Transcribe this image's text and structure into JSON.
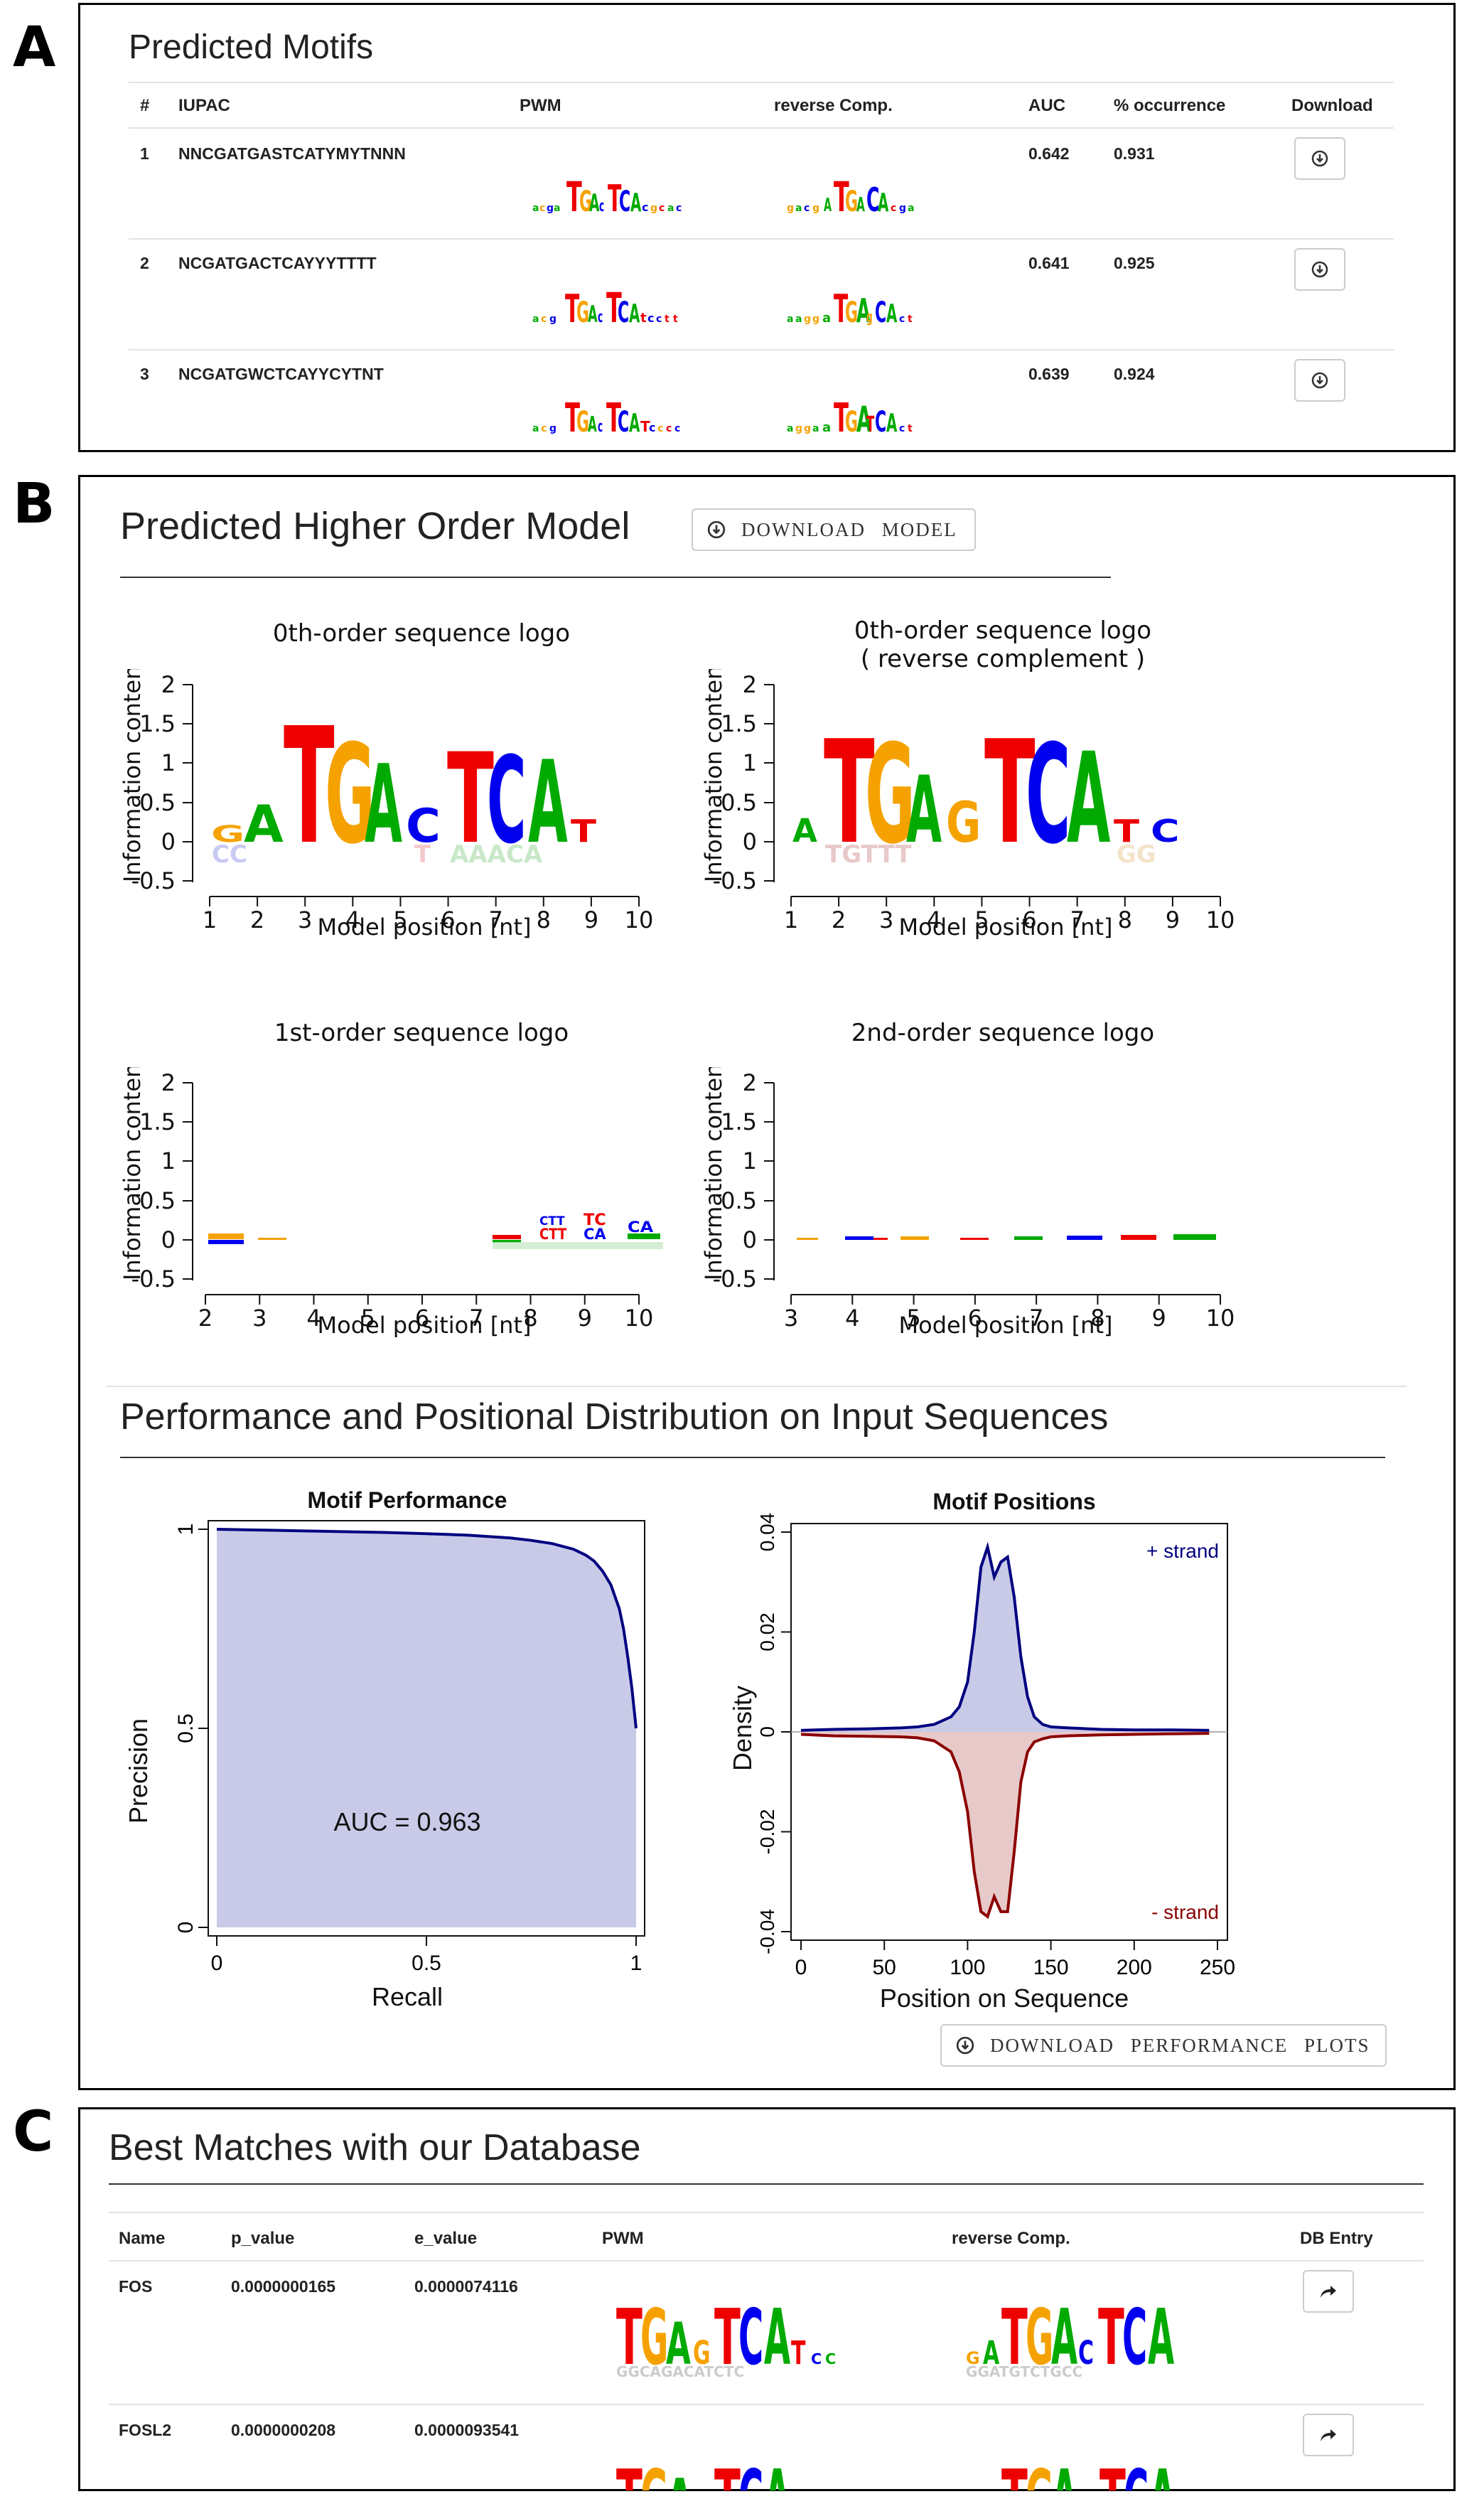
{
  "panel_labels": [
    "A",
    "B",
    "C"
  ],
  "panelA": {
    "title": "Predicted Motifs",
    "columns": [
      "#",
      "IUPAC",
      "PWM",
      "reverse Comp.",
      "AUC",
      "% occurrence",
      "Download"
    ],
    "rows": [
      {
        "num": "1",
        "iupac": "NNCGATGASTCATYMYTNNN",
        "auc": "0.642",
        "occurrence": "0.931",
        "download_icon": "download-circle-icon"
      },
      {
        "num": "2",
        "iupac": "NCGATGACTCAYYYTTTT",
        "auc": "0.641",
        "occurrence": "0.925",
        "download_icon": "download-circle-icon"
      },
      {
        "num": "3",
        "iupac": "NCGATGWCTCAYYCYTNT",
        "auc": "0.639",
        "occurrence": "0.924",
        "download_icon": "download-circle-icon"
      }
    ]
  },
  "panelB": {
    "title": "Predicted Higher Order Model",
    "download_model_label": "DOWNLOAD MODEL",
    "logo0_title": "0th-order sequence logo",
    "logo0rc_title_line1": "0th-order sequence logo",
    "logo0rc_title_line2": "( reverse complement )",
    "logo1_title": "1st-order sequence logo",
    "logo2_title": "2nd-order sequence logo",
    "ylabel": "Information content",
    "xlabel": "Model position [nt]",
    "y_ticks": [
      "2",
      "1.5",
      "1",
      "0.5",
      "0",
      "-0.5"
    ],
    "x_ticks_0": [
      "1",
      "2",
      "3",
      "4",
      "5",
      "6",
      "7",
      "8",
      "9",
      "10"
    ],
    "x_ticks_1": [
      "2",
      "3",
      "4",
      "5",
      "6",
      "7",
      "8",
      "9",
      "10"
    ],
    "x_ticks_2": [
      "3",
      "4",
      "5",
      "6",
      "7",
      "8",
      "9",
      "10"
    ],
    "section2_title": "Performance and Positional Distribution on Input Sequences",
    "download_plots_label": "DOWNLOAD PERFORMANCE PLOTS"
  },
  "colors": {
    "A": "#00aa00",
    "C": "#0000ee",
    "G": "#f5a200",
    "T": "#ee0000",
    "pr_fill": "#c9cae8",
    "pr_line": "#000080",
    "plus_fill": "#c9cae8",
    "plus_line": "#000080",
    "minus_fill": "#e8c9c9",
    "minus_line": "#8b0000"
  },
  "chart_data": [
    {
      "type": "area",
      "title": "Motif Performance",
      "xlabel": "Recall",
      "ylabel": "Precision",
      "xlim": [
        0,
        1
      ],
      "ylim": [
        0,
        1
      ],
      "x_ticks": [
        "0",
        "0.5",
        "1"
      ],
      "y_ticks": [
        "0",
        "0.5",
        "1"
      ],
      "annotation": "AUC = 0.963",
      "series": [
        {
          "x": [
            0,
            0.1,
            0.2,
            0.3,
            0.4,
            0.5,
            0.6,
            0.7,
            0.75,
            0.8,
            0.85,
            0.88,
            0.9,
            0.92,
            0.94,
            0.96,
            0.97,
            0.98,
            0.99,
            1.0
          ],
          "y": [
            1.0,
            0.998,
            0.996,
            0.994,
            0.992,
            0.989,
            0.985,
            0.978,
            0.972,
            0.964,
            0.95,
            0.935,
            0.92,
            0.895,
            0.86,
            0.8,
            0.75,
            0.68,
            0.6,
            0.5
          ]
        }
      ]
    },
    {
      "type": "area",
      "title": "Motif Positions",
      "xlabel": "Position on Sequence",
      "ylabel": "Density",
      "xlim": [
        0,
        250
      ],
      "ylim": [
        -0.04,
        0.04
      ],
      "x_ticks": [
        "0",
        "50",
        "100",
        "150",
        "200",
        "250"
      ],
      "y_ticks": [
        "0.04",
        "0.02",
        "0",
        "-0.02",
        "-0.04"
      ],
      "series": [
        {
          "name": "+ strand",
          "x": [
            0,
            20,
            40,
            60,
            70,
            80,
            90,
            95,
            100,
            104,
            108,
            112,
            116,
            120,
            124,
            128,
            132,
            136,
            140,
            145,
            150,
            160,
            180,
            200,
            220,
            245
          ],
          "y": [
            0.0003,
            0.0005,
            0.0006,
            0.0008,
            0.001,
            0.0015,
            0.003,
            0.005,
            0.01,
            0.02,
            0.033,
            0.037,
            0.031,
            0.034,
            0.035,
            0.027,
            0.015,
            0.007,
            0.003,
            0.0015,
            0.001,
            0.0008,
            0.0005,
            0.0004,
            0.0004,
            0.0003
          ]
        },
        {
          "name": "- strand",
          "x": [
            0,
            20,
            40,
            60,
            70,
            80,
            90,
            95,
            100,
            104,
            108,
            112,
            116,
            120,
            124,
            128,
            132,
            136,
            140,
            145,
            150,
            160,
            180,
            200,
            220,
            245
          ],
          "y": [
            -0.0005,
            -0.0008,
            -0.0009,
            -0.001,
            -0.0012,
            -0.0018,
            -0.004,
            -0.008,
            -0.016,
            -0.028,
            -0.036,
            -0.037,
            -0.033,
            -0.036,
            -0.036,
            -0.024,
            -0.01,
            -0.004,
            -0.002,
            -0.0014,
            -0.001,
            -0.0008,
            -0.0006,
            -0.0005,
            -0.0004,
            -0.0003
          ]
        }
      ]
    }
  ],
  "panelC": {
    "title": "Best Matches with our Database",
    "columns": [
      "Name",
      "p_value",
      "e_value",
      "PWM",
      "reverse Comp.",
      "DB Entry"
    ],
    "rows": [
      {
        "name": "FOS",
        "p_value": "0.0000000165",
        "e_value": "0.0000074116",
        "link_icon": "share-arrow-icon"
      },
      {
        "name": "FOSL2",
        "p_value": "0.0000000208",
        "e_value": "0.0000093541",
        "link_icon": "share-arrow-icon"
      }
    ]
  }
}
